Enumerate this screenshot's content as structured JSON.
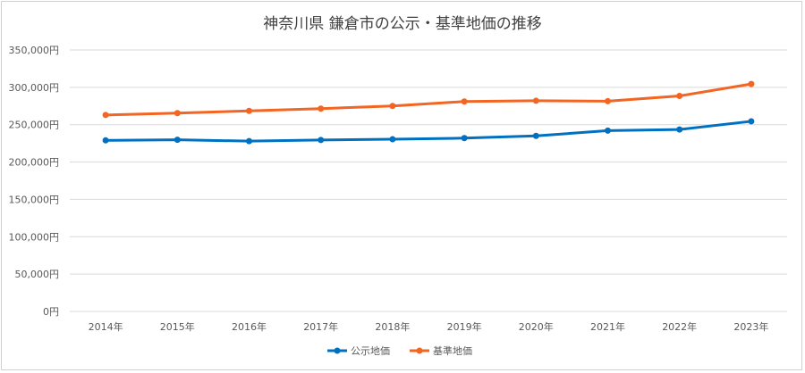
{
  "chart_data": {
    "type": "line",
    "title": "神奈川県 鎌倉市の公示・基準地価の推移",
    "categories": [
      "2014年",
      "2015年",
      "2016年",
      "2017年",
      "2018年",
      "2019年",
      "2020年",
      "2021年",
      "2022年",
      "2023年"
    ],
    "yticks": [
      "0円",
      "50,000円",
      "100,000円",
      "150,000円",
      "200,000円",
      "250,000円",
      "300,000円",
      "350,000円"
    ],
    "ylim": [
      0,
      350000
    ],
    "grid": true,
    "legend_position": "bottom",
    "series": [
      {
        "name": "公示地価",
        "color": "#0070c0",
        "values": [
          229000,
          229800,
          228000,
          229500,
          230500,
          232000,
          235000,
          242000,
          243500,
          254500
        ]
      },
      {
        "name": "基準地価",
        "color": "#f26522",
        "values": [
          263000,
          265500,
          268500,
          271500,
          275000,
          281000,
          282000,
          281500,
          288500,
          304500
        ]
      }
    ]
  }
}
